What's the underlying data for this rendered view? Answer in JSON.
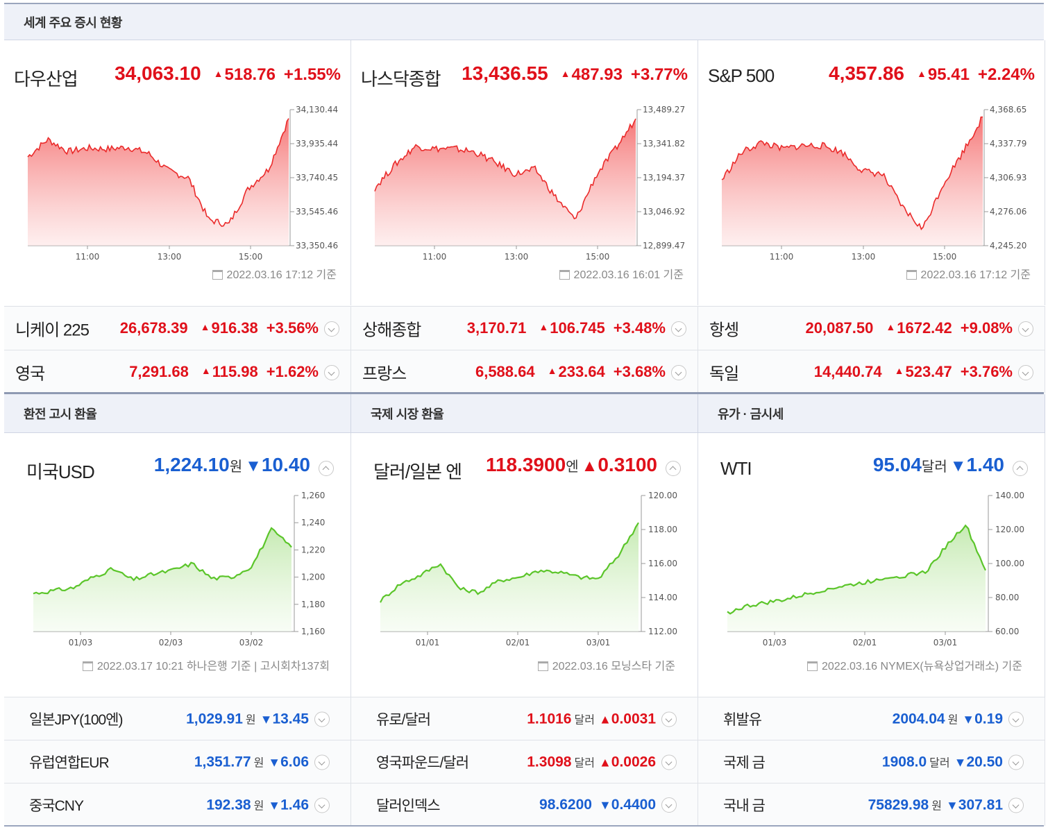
{
  "stocks_section": {
    "title": "세계 주요 증시 현황",
    "main": [
      {
        "name": "다우산업",
        "price": "34,063.10",
        "change": "518.76",
        "pct": "+1.55%",
        "direction": "up",
        "y_labels": [
          "34,130.44",
          "33,935.44",
          "33,740.45",
          "33,545.46",
          "33,350.46"
        ],
        "x_labels": [
          "11:00",
          "13:00",
          "15:00"
        ],
        "timestamp": "2022.03.16 17:12 기준",
        "chart_data": {
          "type": "area",
          "x": [
            "09:30",
            "10:00",
            "10:30",
            "11:00",
            "11:30",
            "12:00",
            "12:30",
            "13:00",
            "13:30",
            "14:00",
            "14:30",
            "15:00",
            "15:30",
            "16:00"
          ],
          "values": [
            33860,
            33960,
            33890,
            33910,
            33905,
            33915,
            33880,
            33780,
            33740,
            33500,
            33470,
            33680,
            33790,
            34080
          ],
          "ylim": [
            33350.46,
            34130.44
          ]
        }
      },
      {
        "name": "나스닥종합",
        "price": "13,436.55",
        "change": "487.93",
        "pct": "+3.77%",
        "direction": "up",
        "y_labels": [
          "13,489.27",
          "13,341.82",
          "13,194.37",
          "13,046.92",
          "12,899.47"
        ],
        "x_labels": [
          "11:00",
          "13:00",
          "15:00"
        ],
        "timestamp": "2022.03.16 16:01 기준",
        "chart_data": {
          "type": "area",
          "x": [
            "09:30",
            "10:00",
            "10:30",
            "11:00",
            "11:30",
            "12:00",
            "12:30",
            "13:00",
            "13:30",
            "14:00",
            "14:30",
            "15:00",
            "15:30",
            "16:00"
          ],
          "values": [
            13150,
            13250,
            13330,
            13320,
            13320,
            13305,
            13260,
            13210,
            13230,
            13110,
            13010,
            13200,
            13320,
            13450
          ],
          "ylim": [
            12899.47,
            13489.27
          ]
        }
      },
      {
        "name": "S&P 500",
        "price": "4,357.86",
        "change": "95.41",
        "pct": "+2.24%",
        "direction": "up",
        "y_labels": [
          "4,368.65",
          "4,337.79",
          "4,306.93",
          "4,276.06",
          "4,245.20"
        ],
        "x_labels": [
          "11:00",
          "13:00",
          "15:00"
        ],
        "timestamp": "2022.03.16 17:12 기준",
        "chart_data": {
          "type": "area",
          "x": [
            "09:30",
            "10:00",
            "10:30",
            "11:00",
            "11:30",
            "12:00",
            "12:30",
            "13:00",
            "13:30",
            "14:00",
            "14:30",
            "15:00",
            "15:30",
            "16:00"
          ],
          "values": [
            4305,
            4330,
            4339,
            4333,
            4336,
            4336,
            4330,
            4313,
            4310,
            4280,
            4260,
            4300,
            4330,
            4362
          ],
          "ylim": [
            4245.2,
            4368.65
          ]
        }
      }
    ],
    "rows": [
      [
        {
          "name": "니케이 225",
          "value": "26,678.39",
          "change": "916.38",
          "pct": "+3.56%"
        },
        {
          "name": "상해종합",
          "value": "3,170.71",
          "change": "106.745",
          "pct": "+3.48%"
        },
        {
          "name": "항셍",
          "value": "20,087.50",
          "change": "1672.42",
          "pct": "+9.08%"
        }
      ],
      [
        {
          "name": "영국",
          "value": "7,291.68",
          "change": "115.98",
          "pct": "+1.62%"
        },
        {
          "name": "프랑스",
          "value": "6,588.64",
          "change": "233.64",
          "pct": "+3.68%"
        },
        {
          "name": "독일",
          "value": "14,440.74",
          "change": "523.47",
          "pct": "+3.76%"
        }
      ]
    ]
  },
  "fx_section": {
    "headers": [
      "환전 고시 환율",
      "국제 시장 환율",
      "유가 · 금시세"
    ],
    "main": [
      {
        "name": "미국USD",
        "price": "1,224.10",
        "unit": "원",
        "change": "10.40",
        "direction": "down",
        "y_labels": [
          "1,260",
          "1,240",
          "1,220",
          "1,200",
          "1,180",
          "1,160"
        ],
        "x_labels": [
          "01/03",
          "02/03",
          "03/02"
        ],
        "timestamp": "2022.03.17 10:21 하나은행 기준 | 고시회차137회",
        "chart_data": {
          "type": "area",
          "x": [
            "12/15",
            "12/22",
            "12/29",
            "01/05",
            "01/12",
            "01/19",
            "01/26",
            "02/02",
            "02/09",
            "02/16",
            "02/23",
            "03/02",
            "03/09",
            "03/16"
          ],
          "values": [
            1188,
            1190,
            1192,
            1200,
            1206,
            1198,
            1202,
            1205,
            1210,
            1199,
            1200,
            1208,
            1235,
            1222
          ],
          "ylim": [
            1160,
            1260
          ]
        }
      },
      {
        "name": "달러/일본 엔",
        "price": "118.3900",
        "unit": "엔",
        "change": "0.3100",
        "direction": "up",
        "y_labels": [
          "120.00",
          "118.00",
          "116.00",
          "114.00",
          "112.00"
        ],
        "x_labels": [
          "01/01",
          "02/01",
          "03/01"
        ],
        "timestamp": "2022.03.16 모닝스타 기준",
        "chart_data": {
          "type": "area",
          "x": [
            "12/15",
            "12/22",
            "12/29",
            "01/05",
            "01/12",
            "01/19",
            "01/26",
            "02/02",
            "02/09",
            "02/16",
            "02/23",
            "03/02",
            "03/09",
            "03/16"
          ],
          "values": [
            113.8,
            114.8,
            115.3,
            116.0,
            114.5,
            114.3,
            115.0,
            115.2,
            115.6,
            115.5,
            115.2,
            115.1,
            116.5,
            118.4
          ],
          "ylim": [
            112,
            120
          ]
        }
      },
      {
        "name": "WTI",
        "price": "95.04",
        "unit": "달러",
        "change": "1.40",
        "direction": "down",
        "y_labels": [
          "140.00",
          "120.00",
          "100.00",
          "80.00",
          "60.00"
        ],
        "x_labels": [
          "01/03",
          "02/01",
          "03/01"
        ],
        "timestamp": "2022.03.16 NYMEX(뉴욕상업거래소) 기준",
        "chart_data": {
          "type": "area",
          "x": [
            "12/15",
            "12/22",
            "12/29",
            "01/05",
            "01/12",
            "01/19",
            "01/26",
            "02/02",
            "02/09",
            "02/16",
            "02/23",
            "03/02",
            "03/09",
            "03/16"
          ],
          "values": [
            71,
            75,
            77,
            79,
            82,
            85,
            87,
            89,
            92,
            93,
            95,
            110,
            123,
            96
          ],
          "ylim": [
            60,
            140
          ]
        }
      }
    ],
    "rows": [
      [
        {
          "name": "일본JPY(100엔)",
          "value": "1,029.91",
          "unit": "원",
          "change": "13.45",
          "direction": "down"
        },
        {
          "name": "유로/달러",
          "value": "1.1016",
          "unit": "달러",
          "change": "0.0031",
          "direction": "up"
        },
        {
          "name": "휘발유",
          "value": "2004.04",
          "unit": "원",
          "change": "0.19",
          "direction": "down"
        }
      ],
      [
        {
          "name": "유럽연합EUR",
          "value": "1,351.77",
          "unit": "원",
          "change": "6.06",
          "direction": "down"
        },
        {
          "name": "영국파운드/달러",
          "value": "1.3098",
          "unit": "달러",
          "change": "0.0026",
          "direction": "up"
        },
        {
          "name": "국제 금",
          "value": "1908.0",
          "unit": "달러",
          "change": "20.50",
          "direction": "down"
        }
      ],
      [
        {
          "name": "중국CNY",
          "value": "192.38",
          "unit": "원",
          "change": "1.46",
          "direction": "down"
        },
        {
          "name": "달러인덱스",
          "value": "98.6200",
          "unit": "",
          "change": "0.4400",
          "direction": "down"
        },
        {
          "name": "국내 금",
          "value": "75829.98",
          "unit": "원",
          "change": "307.81",
          "direction": "down"
        }
      ]
    ]
  },
  "colors": {
    "up": "#e0101a",
    "down": "#1a5fd1",
    "stock_line": "#ea2a2a",
    "fx_line": "#5bc52a"
  }
}
